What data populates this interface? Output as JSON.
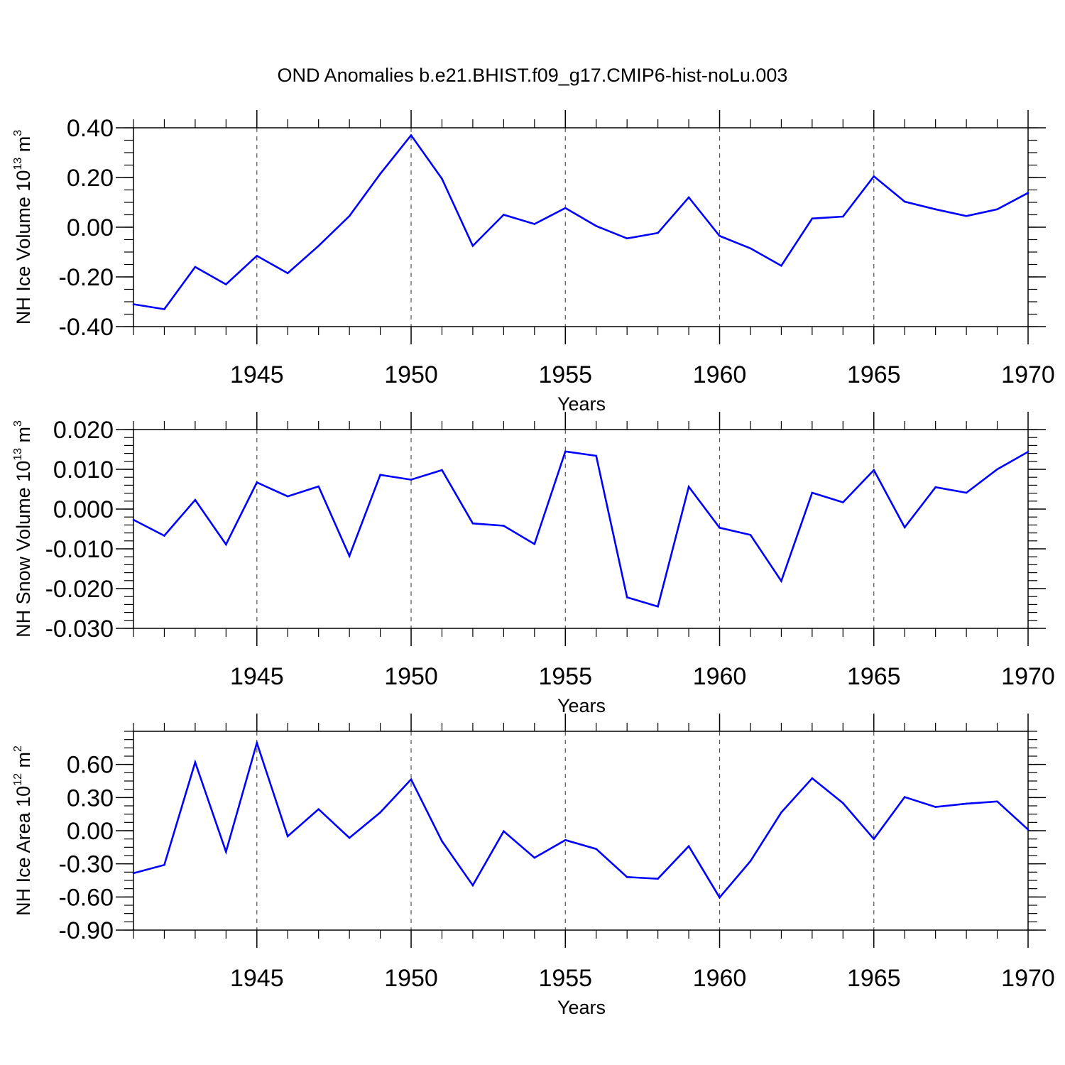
{
  "title": "OND Anomalies b.e21.BHIST.f09_g17.CMIP6-hist-noLu.003",
  "colors": {
    "series": "#0000ff",
    "grid": "#555555",
    "axis": "#000000"
  },
  "chart_data": [
    {
      "type": "line",
      "panel": "nh-ice-volume",
      "ylabel": {
        "main": "NH Ice Volume 10",
        "sup1": "13",
        "mid": " m",
        "sup2": "3"
      },
      "xlabel": "Years",
      "xlim": [
        1941,
        1970
      ],
      "ylim": [
        -0.4,
        0.4
      ],
      "xticks": [
        1945,
        1950,
        1955,
        1960,
        1965,
        1970
      ],
      "xtick_labels": [
        "1945",
        "1950",
        "1955",
        "1960",
        "1965",
        "1970"
      ],
      "yticks": [
        -0.4,
        -0.2,
        0.0,
        0.2,
        0.4
      ],
      "ytick_labels": [
        "-0.40",
        "-0.20",
        "0.00",
        "0.20",
        "0.40"
      ],
      "yminor_step": 0.05,
      "grid_x": true,
      "x": [
        1941,
        1942,
        1943,
        1944,
        1945,
        1946,
        1947,
        1948,
        1949,
        1950,
        1951,
        1952,
        1953,
        1954,
        1955,
        1956,
        1957,
        1958,
        1959,
        1960,
        1961,
        1962,
        1963,
        1964,
        1965,
        1966,
        1967,
        1968,
        1969,
        1970
      ],
      "values": [
        -0.31,
        -0.33,
        -0.16,
        -0.23,
        -0.115,
        -0.185,
        -0.075,
        0.045,
        0.215,
        0.37,
        0.195,
        -0.075,
        0.05,
        0.013,
        0.077,
        0.005,
        -0.045,
        -0.023,
        0.12,
        -0.035,
        -0.085,
        -0.155,
        0.035,
        0.043,
        0.205,
        0.103,
        0.072,
        0.045,
        0.072,
        0.138
      ]
    },
    {
      "type": "line",
      "panel": "nh-snow-volume",
      "ylabel": {
        "main": "NH Snow Volume 10",
        "sup1": "13",
        "mid": " m",
        "sup2": "3"
      },
      "xlabel": "Years",
      "xlim": [
        1941,
        1970
      ],
      "ylim": [
        -0.03,
        0.02
      ],
      "xticks": [
        1945,
        1950,
        1955,
        1960,
        1965,
        1970
      ],
      "xtick_labels": [
        "1945",
        "1950",
        "1955",
        "1960",
        "1965",
        "1970"
      ],
      "yticks": [
        -0.03,
        -0.02,
        -0.01,
        0.0,
        0.01,
        0.02
      ],
      "ytick_labels": [
        "-0.030",
        "-0.020",
        "-0.010",
        "0.000",
        "0.010",
        "0.020"
      ],
      "yminor_step": 0.002,
      "grid_x": true,
      "x": [
        1941,
        1942,
        1943,
        1944,
        1945,
        1946,
        1947,
        1948,
        1949,
        1950,
        1951,
        1952,
        1953,
        1954,
        1955,
        1956,
        1957,
        1958,
        1959,
        1960,
        1961,
        1962,
        1963,
        1964,
        1965,
        1966,
        1967,
        1968,
        1969,
        1970
      ],
      "values": [
        -0.0027,
        -0.0067,
        0.0023,
        -0.0089,
        0.0067,
        0.0032,
        0.0057,
        -0.0118,
        0.0086,
        0.0074,
        0.0098,
        -0.0036,
        -0.0042,
        -0.0088,
        0.0145,
        0.0134,
        -0.0222,
        -0.0245,
        0.0056,
        -0.0047,
        -0.0065,
        -0.0181,
        0.0041,
        0.0017,
        0.0098,
        -0.0046,
        0.0055,
        0.0041,
        0.01,
        0.0144
      ]
    },
    {
      "type": "line",
      "panel": "nh-ice-area",
      "ylabel": {
        "main": "NH Ice Area 10",
        "sup1": "12",
        "mid": " m",
        "sup2": "2"
      },
      "xlabel": "Years",
      "xlim": [
        1941,
        1970
      ],
      "ylim": [
        -0.9,
        0.9
      ],
      "xticks": [
        1945,
        1950,
        1955,
        1960,
        1965,
        1970
      ],
      "xtick_labels": [
        "1945",
        "1950",
        "1955",
        "1960",
        "1965",
        "1970"
      ],
      "yticks": [
        -0.9,
        -0.6,
        -0.3,
        0.0,
        0.3,
        0.6
      ],
      "ytick_labels": [
        "-0.90",
        "-0.60",
        "-0.30",
        "0.00",
        "0.30",
        "0.60"
      ],
      "yminor_step": 0.075,
      "grid_x": true,
      "x": [
        1941,
        1942,
        1943,
        1944,
        1945,
        1946,
        1947,
        1948,
        1949,
        1950,
        1951,
        1952,
        1953,
        1954,
        1955,
        1956,
        1957,
        1958,
        1959,
        1960,
        1961,
        1962,
        1963,
        1964,
        1965,
        1966,
        1967,
        1968,
        1969,
        1970
      ],
      "values": [
        -0.385,
        -0.31,
        0.62,
        -0.19,
        0.795,
        -0.05,
        0.195,
        -0.065,
        0.165,
        0.465,
        -0.095,
        -0.495,
        -0.005,
        -0.245,
        -0.085,
        -0.165,
        -0.42,
        -0.435,
        -0.14,
        -0.605,
        -0.275,
        0.165,
        0.475,
        0.25,
        -0.075,
        0.305,
        0.215,
        0.245,
        0.265,
        0.01
      ]
    }
  ]
}
